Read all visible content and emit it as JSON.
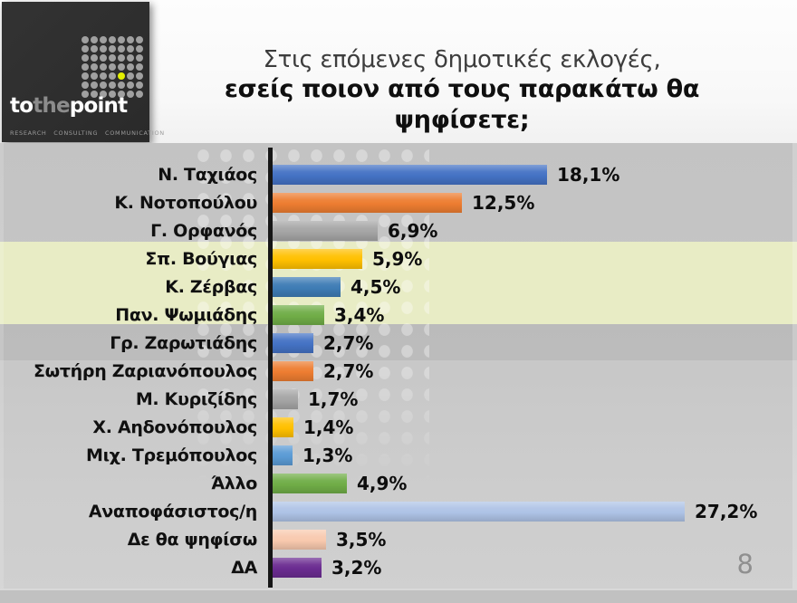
{
  "logo": {
    "brand_to": "to",
    "brand_the": "the",
    "brand_point": "point",
    "tagline": "RESEARCH CONSULTING COMMUNICATION",
    "accent_color": "#e3ef00",
    "dot_grid": {
      "rows": 7,
      "cols": 7,
      "accent_row": 5,
      "accent_col": 5
    }
  },
  "title": {
    "line1": "Στις επόμενες δημοτικές εκλογές,",
    "line2": "εσείς ποιον από τους παρακάτω θα  ψηφίσετε;"
  },
  "page_number": "8",
  "chart_data": {
    "type": "bar",
    "orientation": "horizontal",
    "unit": "%",
    "title": "Στις επόμενες δημοτικές εκλογές, εσείς ποιον από τους παρακάτω θα ψηφίσετε;",
    "xlabel": "",
    "ylabel": "",
    "xlim": [
      0,
      30
    ],
    "grid": false,
    "legend": false,
    "categories": [
      "Ν. Ταχιάος",
      "Κ. Νοτοπούλου",
      "Γ. Ορφανός",
      "Σπ. Βούγιας",
      "Κ. Ζέρβας",
      "Παν. Ψωμιάδης",
      "Γρ. Ζαρωτιάδης",
      "Σωτήρη Ζαριανόπουλος",
      "Μ. Κυριζίδης",
      "Χ. Αηδονόπουλος",
      "Μιχ. Τρεμόπουλος",
      "Άλλο",
      "Αναποφάσιστος/η",
      "Δε θα ψηφίσω",
      "ΔΑ"
    ],
    "values": [
      18.1,
      12.5,
      6.9,
      5.9,
      4.5,
      3.4,
      2.7,
      2.7,
      1.7,
      1.4,
      1.3,
      4.9,
      27.2,
      3.5,
      3.2
    ],
    "value_labels": [
      "18,1%",
      "12,5%",
      "6,9%",
      "5,9%",
      "4,5%",
      "3,4%",
      "2,7%",
      "2,7%",
      "1,7%",
      "1,4%",
      "1,3%",
      "4,9%",
      "27,2%",
      "3,5%",
      "3,2%"
    ],
    "bar_colors": [
      "#4472c4",
      "#ed7d31",
      "#a5a5a5",
      "#ffc000",
      "#3e7cb5",
      "#70ad47",
      "#4472c4",
      "#ed7d31",
      "#a5a5a5",
      "#ffc000",
      "#5b9bd5",
      "#70ad47",
      "#aec3e6",
      "#f8c9ae",
      "#6b2c91"
    ],
    "highlight_band": {
      "rows": [
        "Σπ. Βούγιας",
        "Κ. Ζέρβας",
        "Παν. Ψωμιάδης"
      ],
      "color": "#e8ecc5"
    }
  }
}
